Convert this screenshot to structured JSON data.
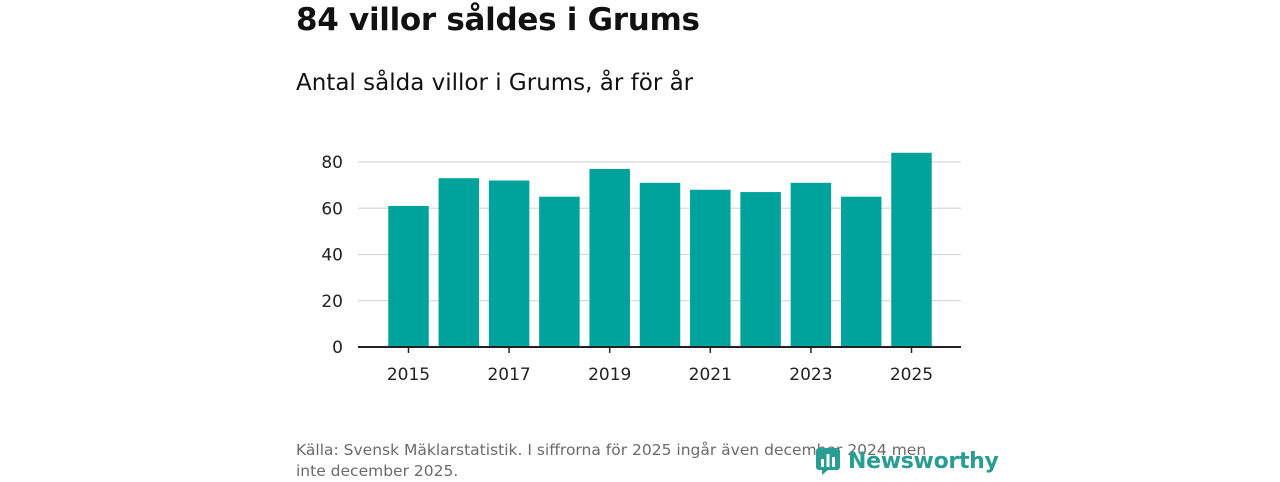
{
  "title": "84 villor såldes i Grums",
  "subtitle": "Antal sålda villor i Grums, år för år",
  "source": "Källa: Svensk Mäklarstatistik. I siffrorna för 2025 ingår även december 2024 men inte december 2025.",
  "logo_text": "Newsworthy",
  "colors": {
    "bar": "#00a39b",
    "grid": "#d9d9d9",
    "axis": "#222222",
    "logo": "#2a9d93"
  },
  "chart_data": {
    "type": "bar",
    "title": "Antal sålda villor i Grums, år för år",
    "xlabel": "",
    "ylabel": "",
    "categories": [
      "2015",
      "2016",
      "2017",
      "2018",
      "2019",
      "2020",
      "2021",
      "2022",
      "2023",
      "2024",
      "2025"
    ],
    "values": [
      61,
      73,
      72,
      65,
      77,
      71,
      68,
      67,
      71,
      65,
      84
    ],
    "x_tick_labels": [
      "2015",
      "2017",
      "2019",
      "2021",
      "2023",
      "2025"
    ],
    "y_ticks": [
      0,
      20,
      40,
      60,
      80
    ],
    "ylim": [
      0,
      80
    ],
    "grid": true
  }
}
